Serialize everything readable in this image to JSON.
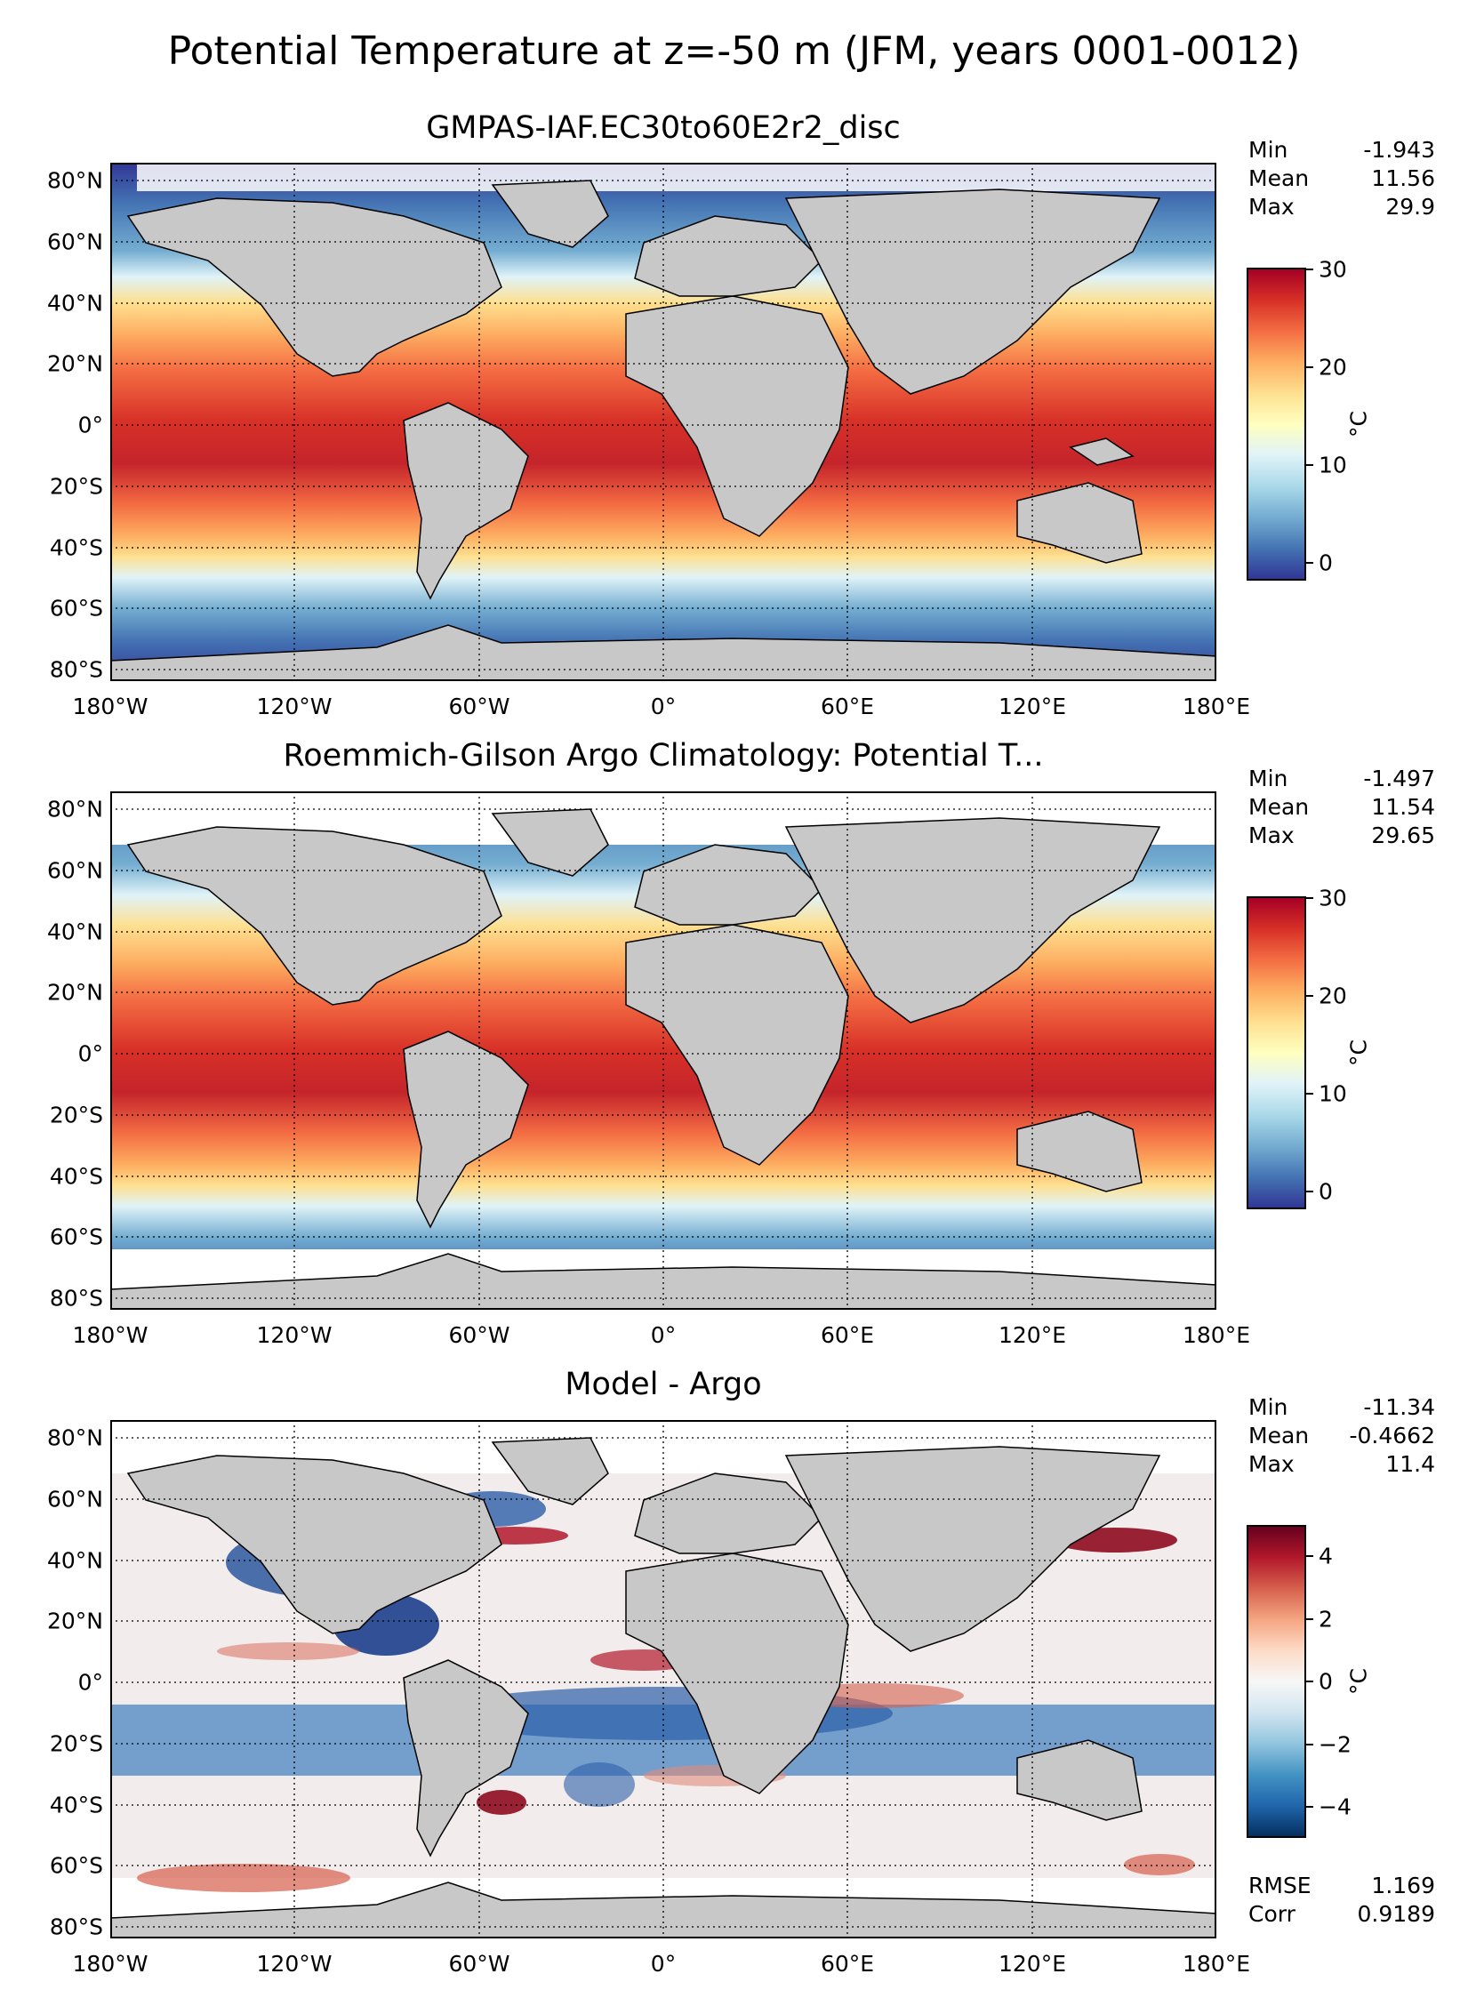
{
  "figure": {
    "suptitle": "Potential Temperature at z=-50 m (JFM, years 0001-0012)"
  },
  "axes": {
    "lat_ticks": [
      "80°N",
      "60°N",
      "40°N",
      "20°N",
      "0°",
      "20°S",
      "40°S",
      "60°S",
      "80°S"
    ],
    "lon_ticks": [
      "180°W",
      "120°W",
      "60°W",
      "0°",
      "60°E",
      "120°E",
      "180°E"
    ]
  },
  "panels": [
    {
      "title": "GMPAS-IAF.EC30to60E2r2_disc",
      "stats": [
        {
          "label": "Min",
          "value": "-1.943"
        },
        {
          "label": "Mean",
          "value": "11.56"
        },
        {
          "label": "Max",
          "value": "29.9"
        }
      ],
      "colorbar": {
        "ticks": [
          "30",
          "20",
          "10",
          "0"
        ],
        "unit": "°C",
        "range": [
          -2,
          30
        ],
        "cmap": "RdYlBu_r"
      }
    },
    {
      "title": "Roemmich-Gilson Argo Climatology: Potential T...",
      "stats": [
        {
          "label": "Min",
          "value": "-1.497"
        },
        {
          "label": "Mean",
          "value": "11.54"
        },
        {
          "label": "Max",
          "value": "29.65"
        }
      ],
      "colorbar": {
        "ticks": [
          "30",
          "20",
          "10",
          "0"
        ],
        "unit": "°C",
        "range": [
          -2,
          30
        ],
        "cmap": "RdYlBu_r"
      }
    },
    {
      "title": "Model - Argo",
      "stats": [
        {
          "label": "Min",
          "value": "-11.34"
        },
        {
          "label": "Mean",
          "value": "-0.4662"
        },
        {
          "label": "Max",
          "value": "11.4"
        }
      ],
      "extra_stats": [
        {
          "label": "RMSE",
          "value": "1.169"
        },
        {
          "label": "Corr",
          "value": "0.9189"
        }
      ],
      "colorbar": {
        "ticks": [
          "4",
          "2",
          "0",
          "−2",
          "−4"
        ],
        "unit": "°C",
        "range": [
          -5,
          5
        ],
        "cmap": "RdBu_r"
      }
    }
  ],
  "colors": {
    "land": "#c8c8c8",
    "warm": "#b2182b",
    "cold": "#313695",
    "neutral": "#f0f0f0"
  }
}
